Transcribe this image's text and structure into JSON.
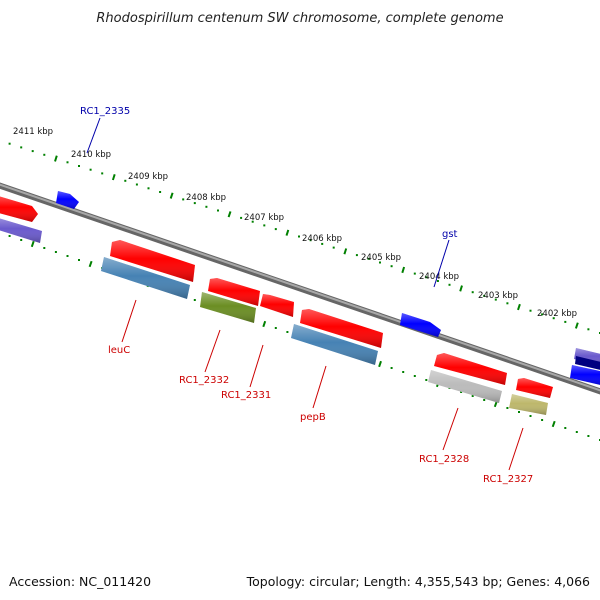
{
  "title": "Rhodospirillum centenum SW chromosome, complete genome",
  "footer": {
    "accession": "Accession: NC_011420",
    "topology": "Topology: circular; Length: 4,355,543 bp; Genes: 4,066"
  },
  "colors": {
    "forward_gene": "#ff0000",
    "reverse_gene": "#4682b4",
    "blue_gene": "#0000ff",
    "olive_gene": "#6b8e23",
    "gray_gene": "#bbbbbb",
    "khaki_gene": "#bdb76b",
    "purple_gene": "#6a5acd",
    "navy_gene": "#000080",
    "tick_green": "#008000",
    "backbone": "#808080",
    "blue_label": "#0000aa",
    "red_label": "#cc0000"
  },
  "kbp_ticks": [
    "2411 kbp",
    "2410 kbp",
    "2409 kbp",
    "2408 kbp",
    "2407 kbp",
    "2406 kbp",
    "2405 kbp",
    "2404 kbp",
    "2403 kbp",
    "2402 kbp"
  ],
  "gene_labels": [
    {
      "name": "RC1_2335",
      "color": "blue"
    },
    {
      "name": "gst",
      "color": "blue"
    },
    {
      "name": "leuC",
      "color": "red"
    },
    {
      "name": "RC1_2332",
      "color": "red"
    },
    {
      "name": "RC1_2331",
      "color": "red"
    },
    {
      "name": "pepB",
      "color": "red"
    },
    {
      "name": "RC1_2328",
      "color": "red"
    },
    {
      "name": "RC1_2327",
      "color": "red"
    }
  ]
}
